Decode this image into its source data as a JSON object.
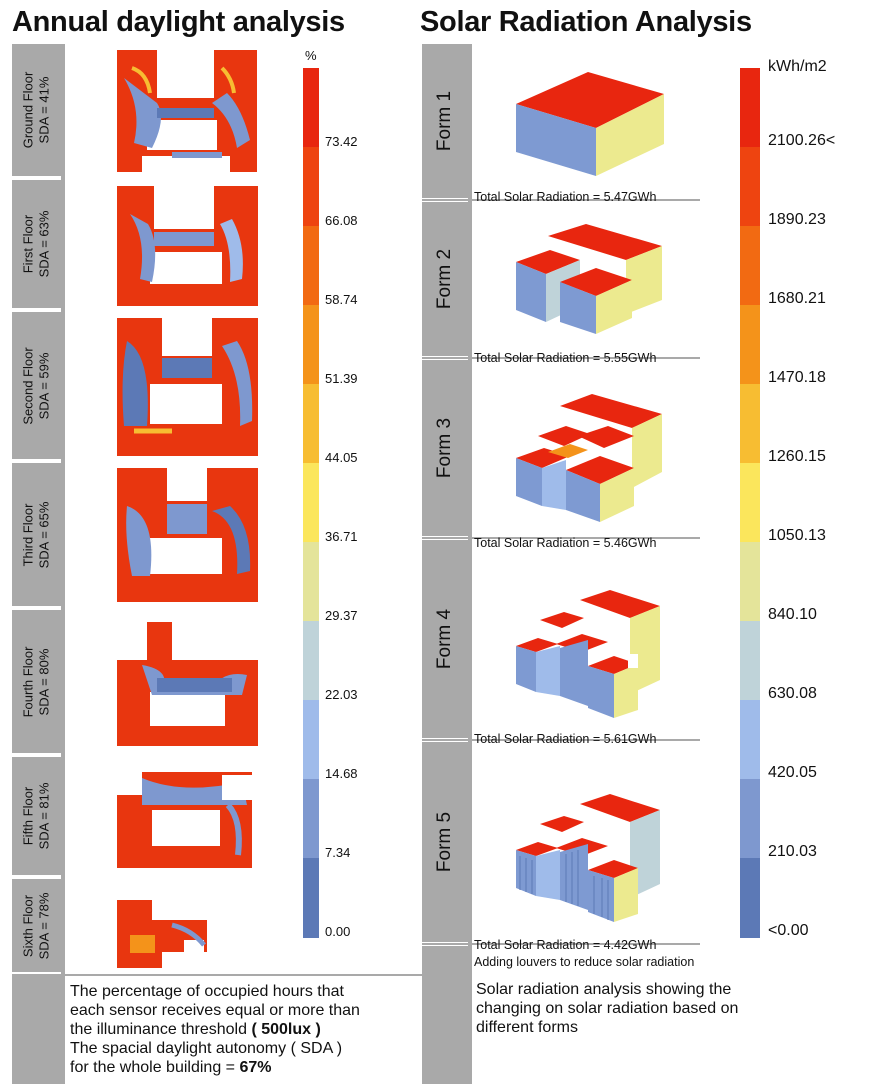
{
  "left": {
    "title": "Annual daylight analysis",
    "unit": "%",
    "floors": [
      {
        "label": "Ground Floor\nSDA = 41%",
        "sda": 41
      },
      {
        "label": "First Floor\nSDA = 63%",
        "sda": 63
      },
      {
        "label": "Second Floor\nSDA = 59%",
        "sda": 59
      },
      {
        "label": "Third Floor\nSDA = 65%",
        "sda": 65
      },
      {
        "label": "Fourth Floor\nSDA = 80%",
        "sda": 80
      },
      {
        "label": "Fifth Floor\nSDA = 81%",
        "sda": 81
      },
      {
        "label": "Sixth Floor\nSDA = 78%",
        "sda": 78
      }
    ],
    "scale_ticks": [
      "73.42",
      "66.08",
      "58.74",
      "51.39",
      "44.05",
      "36.71",
      "29.37",
      "22.03",
      "14.68",
      "7.34",
      "0.00"
    ],
    "note_lines": {
      "l1": "The percentage of occupied hours that",
      "l2": "each sensor receives equal or more than",
      "l3a": "the illuminance threshold ",
      "l3b": "( 500lux )",
      "l4": "The spacial daylight autonomy ( SDA )",
      "l5a": "for the whole building = ",
      "l5b": "67%"
    }
  },
  "right": {
    "title": "Solar Radiation Analysis",
    "unit": "kWh/m2",
    "forms": [
      {
        "label": "Form 1",
        "total": "Total Solar Radiation = 5.47GWh"
      },
      {
        "label": "Form 2",
        "total": "Total Solar Radiation = 5.55GWh"
      },
      {
        "label": "Form 3",
        "total": "Total Solar Radiation = 5.46GWh"
      },
      {
        "label": "Form 4",
        "total": "Total Solar Radiation = 5.61GWh"
      },
      {
        "label": "Form 5",
        "total": "Total Solar Radiation = 4.42GWh",
        "extra": "Adding louvers to reduce solar radiation"
      }
    ],
    "scale_ticks": [
      "2100.26<",
      "1890.23",
      "1680.21",
      "1470.18",
      "1260.15",
      "1050.13",
      "840.10",
      "630.08",
      "420.05",
      "210.03",
      "<0.00"
    ],
    "note_lines": {
      "l1": "Solar radiation analysis showing the",
      "l2": "changing on solar radiation based on",
      "l3": "different forms"
    }
  },
  "colors": {
    "scale": [
      "#e8260f",
      "#ee4410",
      "#f26a12",
      "#f4931a",
      "#f7bd32",
      "#fbe65c",
      "#e4e49a",
      "#bfd3d9",
      "#9fbbea",
      "#7e98cf",
      "#5c79b6"
    ],
    "roof": "#e8260f",
    "wall_blue": "#7e9ad2",
    "wall_yellow": "#ecea8f"
  }
}
